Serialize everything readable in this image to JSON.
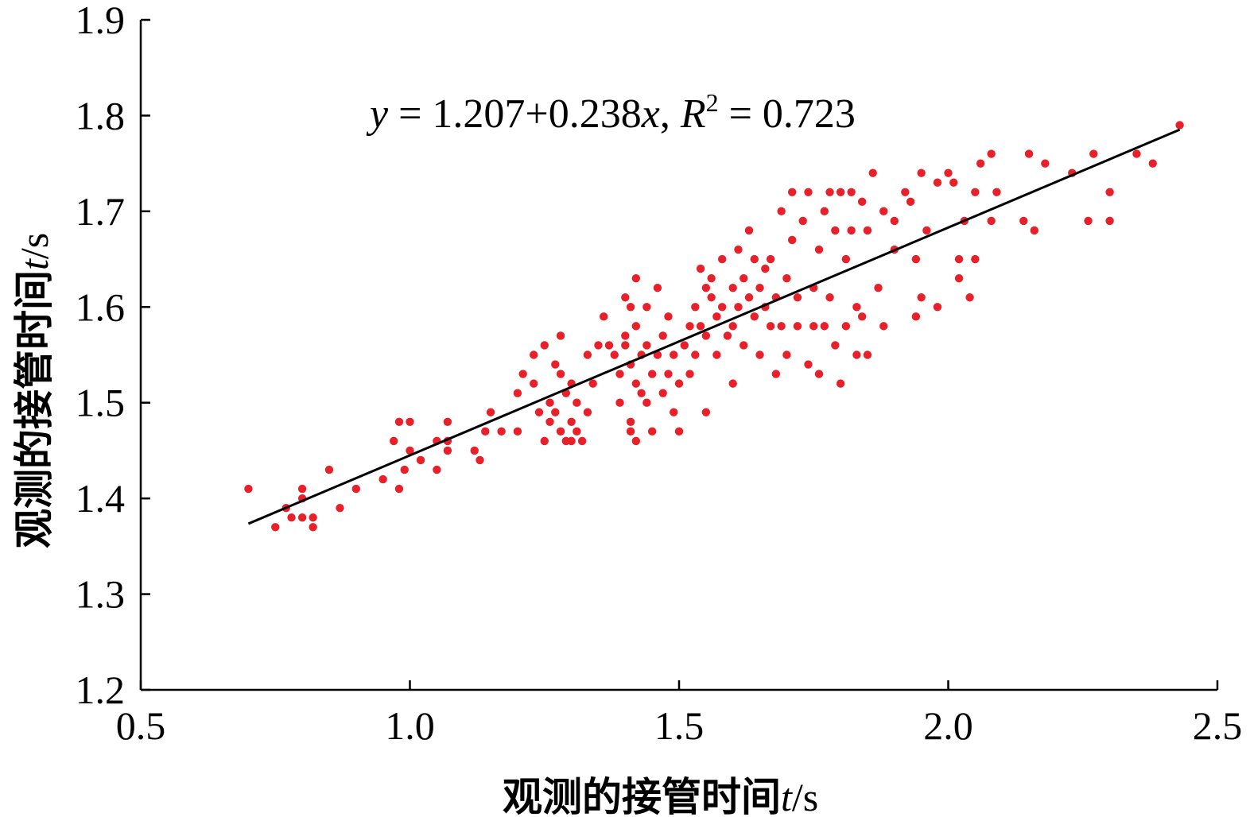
{
  "chart_data": {
    "type": "scatter",
    "title": "",
    "xlabel": {
      "text": "观测的接管时间",
      "var": "t",
      "unit": "/s"
    },
    "ylabel": {
      "text": "观测的接管时间",
      "var": "t",
      "unit": "/s"
    },
    "xlim": [
      0.5,
      2.5
    ],
    "ylim": [
      1.2,
      1.9
    ],
    "x_ticks": [
      "0.5",
      "1.0",
      "1.5",
      "2.0",
      "2.5"
    ],
    "y_ticks": [
      "1.2",
      "1.3",
      "1.4",
      "1.5",
      "1.6",
      "1.7",
      "1.8",
      "1.9"
    ],
    "grid": false,
    "point_color": "#e8202a",
    "line_color": "#000000",
    "equation": {
      "y": "y",
      "eq1": " = 1.207+0.238",
      "x": "x",
      "sep": ", ",
      "R": "R",
      "sup": "2",
      "eq2": " = 0.723"
    },
    "fit": {
      "intercept": 1.207,
      "slope": 0.238,
      "x_range": [
        0.7,
        2.43
      ]
    },
    "series": [
      {
        "points": [
          [
            0.7,
            1.41
          ],
          [
            0.75,
            1.37
          ],
          [
            0.77,
            1.39
          ],
          [
            0.78,
            1.38
          ],
          [
            0.8,
            1.41
          ],
          [
            0.8,
            1.38
          ],
          [
            0.8,
            1.4
          ],
          [
            0.82,
            1.37
          ],
          [
            0.82,
            1.38
          ],
          [
            0.85,
            1.43
          ],
          [
            0.87,
            1.39
          ],
          [
            0.9,
            1.41
          ],
          [
            0.95,
            1.42
          ],
          [
            0.97,
            1.46
          ],
          [
            0.98,
            1.41
          ],
          [
            0.98,
            1.48
          ],
          [
            0.99,
            1.43
          ],
          [
            1.0,
            1.48
          ],
          [
            1.0,
            1.45
          ],
          [
            1.02,
            1.44
          ],
          [
            1.05,
            1.43
          ],
          [
            1.05,
            1.46
          ],
          [
            1.07,
            1.48
          ],
          [
            1.07,
            1.45
          ],
          [
            1.07,
            1.46
          ],
          [
            1.12,
            1.45
          ],
          [
            1.13,
            1.44
          ],
          [
            1.14,
            1.47
          ],
          [
            1.15,
            1.49
          ],
          [
            1.17,
            1.47
          ],
          [
            1.2,
            1.51
          ],
          [
            1.2,
            1.47
          ],
          [
            1.21,
            1.53
          ],
          [
            1.23,
            1.52
          ],
          [
            1.23,
            1.55
          ],
          [
            1.24,
            1.49
          ],
          [
            1.25,
            1.56
          ],
          [
            1.25,
            1.46
          ],
          [
            1.26,
            1.48
          ],
          [
            1.26,
            1.5
          ],
          [
            1.27,
            1.54
          ],
          [
            1.27,
            1.49
          ],
          [
            1.28,
            1.57
          ],
          [
            1.28,
            1.53
          ],
          [
            1.28,
            1.47
          ],
          [
            1.29,
            1.51
          ],
          [
            1.29,
            1.46
          ],
          [
            1.3,
            1.52
          ],
          [
            1.3,
            1.48
          ],
          [
            1.3,
            1.46
          ],
          [
            1.31,
            1.47
          ],
          [
            1.31,
            1.5
          ],
          [
            1.32,
            1.46
          ],
          [
            1.33,
            1.49
          ],
          [
            1.33,
            1.55
          ],
          [
            1.34,
            1.52
          ],
          [
            1.35,
            1.56
          ],
          [
            1.36,
            1.59
          ],
          [
            1.37,
            1.56
          ],
          [
            1.38,
            1.55
          ],
          [
            1.39,
            1.5
          ],
          [
            1.39,
            1.53
          ],
          [
            1.4,
            1.57
          ],
          [
            1.4,
            1.61
          ],
          [
            1.4,
            1.56
          ],
          [
            1.41,
            1.47
          ],
          [
            1.41,
            1.48
          ],
          [
            1.41,
            1.6
          ],
          [
            1.41,
            1.54
          ],
          [
            1.42,
            1.63
          ],
          [
            1.42,
            1.58
          ],
          [
            1.42,
            1.52
          ],
          [
            1.42,
            1.46
          ],
          [
            1.43,
            1.55
          ],
          [
            1.43,
            1.51
          ],
          [
            1.44,
            1.6
          ],
          [
            1.44,
            1.56
          ],
          [
            1.44,
            1.5
          ],
          [
            1.45,
            1.53
          ],
          [
            1.45,
            1.47
          ],
          [
            1.46,
            1.55
          ],
          [
            1.46,
            1.62
          ],
          [
            1.47,
            1.51
          ],
          [
            1.47,
            1.57
          ],
          [
            1.48,
            1.53
          ],
          [
            1.48,
            1.59
          ],
          [
            1.49,
            1.55
          ],
          [
            1.49,
            1.49
          ],
          [
            1.5,
            1.52
          ],
          [
            1.5,
            1.47
          ],
          [
            1.51,
            1.56
          ],
          [
            1.52,
            1.58
          ],
          [
            1.52,
            1.53
          ],
          [
            1.53,
            1.6
          ],
          [
            1.53,
            1.55
          ],
          [
            1.54,
            1.64
          ],
          [
            1.54,
            1.58
          ],
          [
            1.55,
            1.62
          ],
          [
            1.55,
            1.57
          ],
          [
            1.55,
            1.49
          ],
          [
            1.56,
            1.61
          ],
          [
            1.56,
            1.63
          ],
          [
            1.57,
            1.59
          ],
          [
            1.57,
            1.55
          ],
          [
            1.58,
            1.6
          ],
          [
            1.58,
            1.65
          ],
          [
            1.59,
            1.57
          ],
          [
            1.6,
            1.62
          ],
          [
            1.6,
            1.52
          ],
          [
            1.6,
            1.58
          ],
          [
            1.61,
            1.6
          ],
          [
            1.61,
            1.66
          ],
          [
            1.62,
            1.63
          ],
          [
            1.62,
            1.56
          ],
          [
            1.63,
            1.61
          ],
          [
            1.63,
            1.68
          ],
          [
            1.64,
            1.59
          ],
          [
            1.64,
            1.65
          ],
          [
            1.65,
            1.62
          ],
          [
            1.65,
            1.55
          ],
          [
            1.66,
            1.64
          ],
          [
            1.66,
            1.6
          ],
          [
            1.67,
            1.58
          ],
          [
            1.67,
            1.65
          ],
          [
            1.68,
            1.61
          ],
          [
            1.68,
            1.53
          ],
          [
            1.69,
            1.7
          ],
          [
            1.69,
            1.58
          ],
          [
            1.7,
            1.63
          ],
          [
            1.7,
            1.55
          ],
          [
            1.71,
            1.72
          ],
          [
            1.71,
            1.67
          ],
          [
            1.72,
            1.61
          ],
          [
            1.72,
            1.58
          ],
          [
            1.73,
            1.69
          ],
          [
            1.74,
            1.54
          ],
          [
            1.74,
            1.72
          ],
          [
            1.75,
            1.62
          ],
          [
            1.75,
            1.58
          ],
          [
            1.76,
            1.66
          ],
          [
            1.76,
            1.53
          ],
          [
            1.77,
            1.7
          ],
          [
            1.77,
            1.58
          ],
          [
            1.78,
            1.72
          ],
          [
            1.78,
            1.61
          ],
          [
            1.79,
            1.68
          ],
          [
            1.79,
            1.56
          ],
          [
            1.8,
            1.72
          ],
          [
            1.8,
            1.52
          ],
          [
            1.81,
            1.65
          ],
          [
            1.81,
            1.58
          ],
          [
            1.82,
            1.72
          ],
          [
            1.82,
            1.68
          ],
          [
            1.83,
            1.55
          ],
          [
            1.83,
            1.6
          ],
          [
            1.84,
            1.71
          ],
          [
            1.84,
            1.59
          ],
          [
            1.85,
            1.55
          ],
          [
            1.85,
            1.68
          ],
          [
            1.86,
            1.74
          ],
          [
            1.87,
            1.62
          ],
          [
            1.88,
            1.58
          ],
          [
            1.88,
            1.7
          ],
          [
            1.9,
            1.66
          ],
          [
            1.9,
            1.69
          ],
          [
            1.92,
            1.72
          ],
          [
            1.93,
            1.71
          ],
          [
            1.94,
            1.59
          ],
          [
            1.94,
            1.65
          ],
          [
            1.95,
            1.74
          ],
          [
            1.95,
            1.61
          ],
          [
            1.96,
            1.68
          ],
          [
            1.98,
            1.73
          ],
          [
            1.98,
            1.6
          ],
          [
            2.0,
            1.74
          ],
          [
            2.01,
            1.73
          ],
          [
            2.02,
            1.63
          ],
          [
            2.02,
            1.65
          ],
          [
            2.03,
            1.69
          ],
          [
            2.04,
            1.61
          ],
          [
            2.05,
            1.72
          ],
          [
            2.05,
            1.65
          ],
          [
            2.06,
            1.75
          ],
          [
            2.08,
            1.76
          ],
          [
            2.08,
            1.69
          ],
          [
            2.09,
            1.72
          ],
          [
            2.14,
            1.69
          ],
          [
            2.15,
            1.76
          ],
          [
            2.16,
            1.68
          ],
          [
            2.18,
            1.75
          ],
          [
            2.23,
            1.74
          ],
          [
            2.26,
            1.69
          ],
          [
            2.27,
            1.76
          ],
          [
            2.3,
            1.72
          ],
          [
            2.3,
            1.69
          ],
          [
            2.35,
            1.76
          ],
          [
            2.38,
            1.75
          ],
          [
            2.43,
            1.79
          ]
        ]
      }
    ]
  }
}
